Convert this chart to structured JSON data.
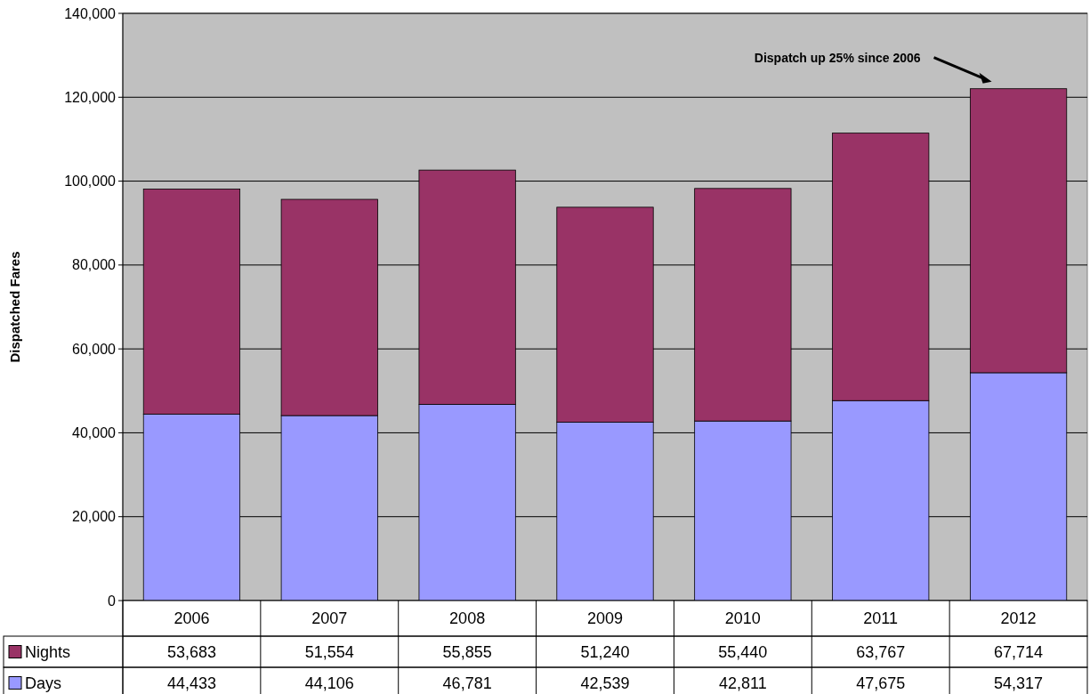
{
  "chart_data": {
    "type": "bar",
    "stacked": true,
    "ylabel": "Dispatched Fares",
    "categories": [
      "2006",
      "2007",
      "2008",
      "2009",
      "2010",
      "2011",
      "2012"
    ],
    "series": [
      {
        "name": "Days",
        "color": "#9999ff",
        "values": [
          44433,
          44106,
          46781,
          42539,
          42811,
          47675,
          54317
        ],
        "value_labels": [
          "44,433",
          "44,106",
          "46,781",
          "42,539",
          "42,811",
          "47,675",
          "54,317"
        ]
      },
      {
        "name": "Nights",
        "color": "#993366",
        "values": [
          53683,
          51554,
          55855,
          51240,
          55440,
          63767,
          67714
        ],
        "value_labels": [
          "53,683",
          "51,554",
          "55,855",
          "51,240",
          "55,440",
          "63,767",
          "67,714"
        ]
      }
    ],
    "ylim": [
      0,
      140000
    ],
    "yticks": [
      {
        "value": 0,
        "label": "0"
      },
      {
        "value": 20000,
        "label": "20,000"
      },
      {
        "value": 40000,
        "label": "40,000"
      },
      {
        "value": 60000,
        "label": "60,000"
      },
      {
        "value": 80000,
        "label": "80,000"
      },
      {
        "value": 100000,
        "label": "100,000"
      },
      {
        "value": 120000,
        "label": "120,000"
      },
      {
        "value": 140000,
        "label": "140,000"
      }
    ],
    "grid": "y",
    "legend": "bottom left",
    "annotations": [
      "Dispatch up 25% since 2006"
    ]
  }
}
